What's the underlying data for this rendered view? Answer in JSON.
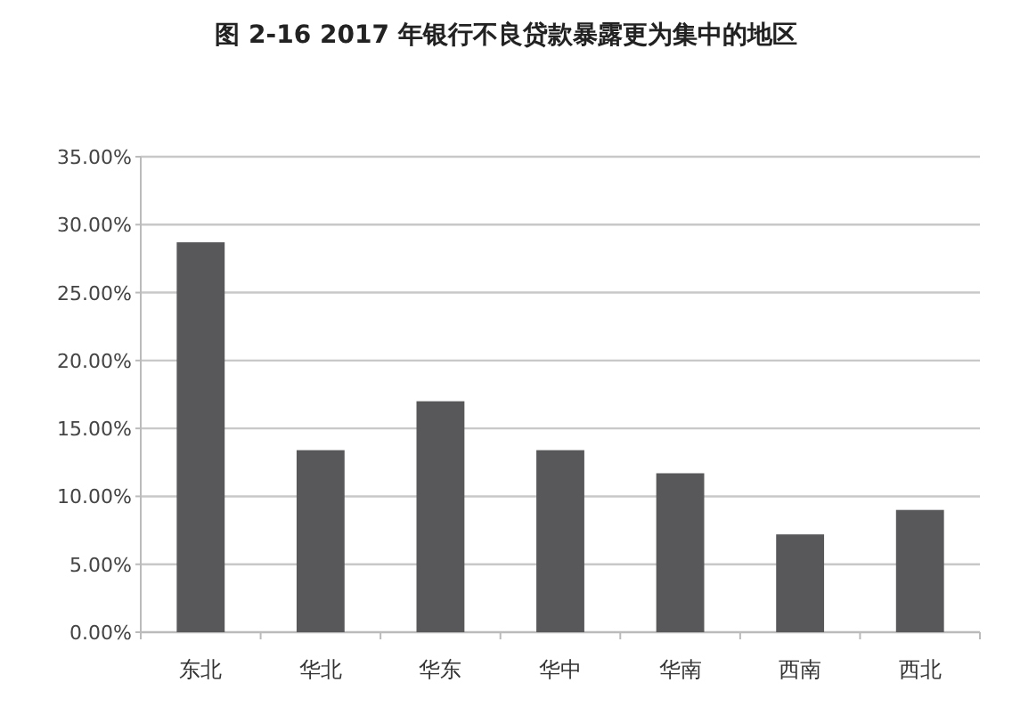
{
  "chart_data": {
    "type": "bar",
    "title": "图 2-16   2017 年银行不良贷款暴露更为集中的地区",
    "categories": [
      "东北",
      "华北",
      "华东",
      "华中",
      "华南",
      "西南",
      "西北"
    ],
    "values": [
      28.7,
      13.4,
      17.0,
      13.4,
      11.7,
      7.2,
      9.0
    ],
    "color": "#58575a",
    "ylim": [
      0,
      35
    ],
    "yticks": [
      {
        "value": 0,
        "label": "0.00%"
      },
      {
        "value": 5,
        "label": "5.00%"
      },
      {
        "value": 10,
        "label": "10.00%"
      },
      {
        "value": 15,
        "label": "15.00%"
      },
      {
        "value": 20,
        "label": "20.00%"
      },
      {
        "value": 25,
        "label": "25.00%"
      },
      {
        "value": 30,
        "label": "30.00%"
      },
      {
        "value": 35,
        "label": "35.00%"
      }
    ],
    "grid": "y"
  }
}
